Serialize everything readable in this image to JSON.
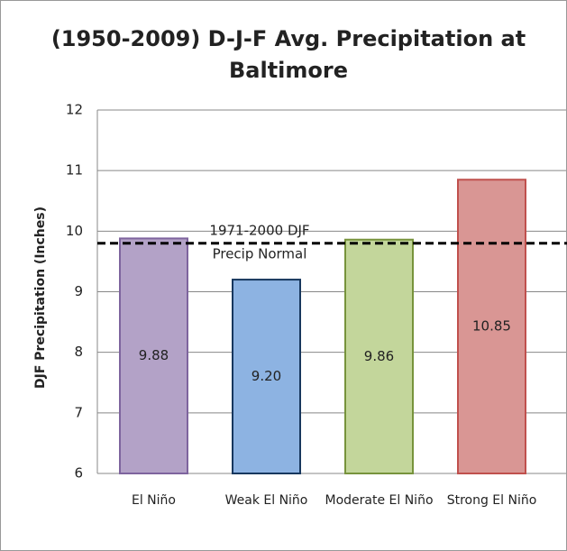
{
  "chart_data": {
    "type": "bar",
    "title": "(1950-2009) D-J-F Avg. Precipitation at Baltimore",
    "ylabel": "DJF Precipitation (Inches)",
    "categories": [
      "El Niño",
      "Weak El Niño",
      "Moderate El Niño",
      "Strong El Niño"
    ],
    "values": [
      9.88,
      9.2,
      9.86,
      10.85
    ],
    "value_labels": [
      "9.88",
      "9.20",
      "9.86",
      "10.85"
    ],
    "colors": [
      "#b3a2c7",
      "#8db3e2",
      "#c3d69b",
      "#d99694"
    ],
    "edgecolors": [
      "#7e649e",
      "#17375e",
      "#77933c",
      "#c0504d"
    ],
    "ylim": [
      6,
      12
    ],
    "yticks": [
      6,
      7,
      8,
      9,
      10,
      11,
      12
    ],
    "grid": true,
    "reference_line": {
      "value": 9.8,
      "label": [
        "1971-2000 DJF",
        "Precip Normal"
      ]
    }
  }
}
